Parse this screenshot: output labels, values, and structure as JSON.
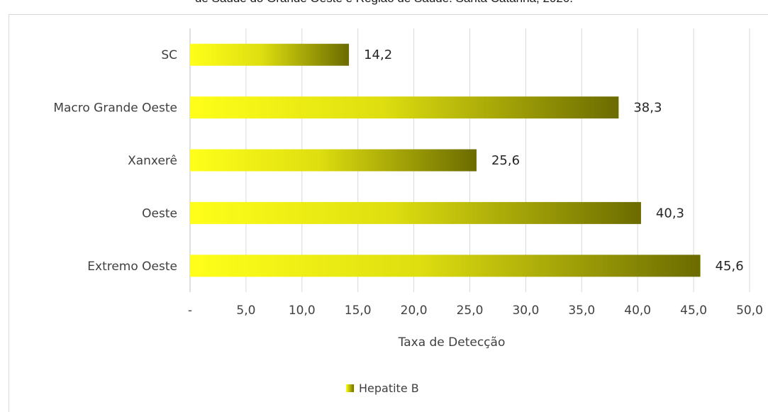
{
  "page_title_partial": "de Saúde do Grande Oeste e Região de Saúde. Santa Catarina, 2020.",
  "colors": {
    "bar_start": "#ffff1a",
    "bar_end": "#6b6b00",
    "grid": "#d9d9d9"
  },
  "chart_data": {
    "type": "bar",
    "orientation": "horizontal",
    "categories": [
      "SC",
      "Macro Grande Oeste",
      "Xanxerê",
      "Oeste",
      "Extremo Oeste"
    ],
    "series": [
      {
        "name": "Hepatite B",
        "values": [
          14.2,
          38.3,
          25.6,
          40.3,
          45.6
        ]
      }
    ],
    "value_labels": [
      "14,2",
      "38,3",
      "25,6",
      "40,3",
      "45,6"
    ],
    "xlabel": "Taxa de Detecção",
    "xlim": [
      0,
      50
    ],
    "x_ticks": [
      0,
      5,
      10,
      15,
      20,
      25,
      30,
      35,
      40,
      45,
      50
    ],
    "x_tick_labels": [
      "-",
      "5,0",
      "10,0",
      "15,0",
      "20,0",
      "25,0",
      "30,0",
      "35,0",
      "40,0",
      "45,0",
      "50,0"
    ],
    "grid": true,
    "legend_position": "bottom"
  }
}
